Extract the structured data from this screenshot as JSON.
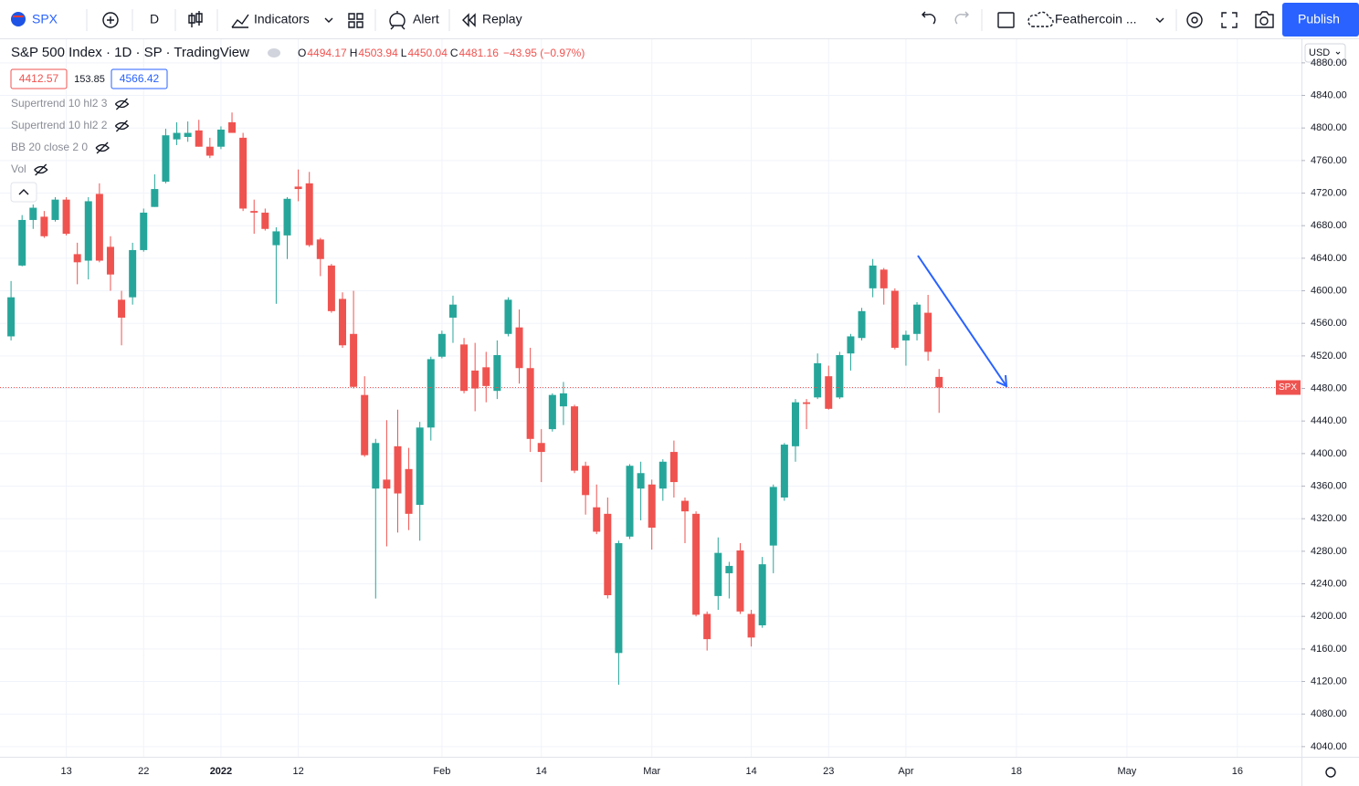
{
  "toolbar": {
    "symbol": "SPX",
    "interval": "D",
    "indicators": "Indicators",
    "alert": "Alert",
    "replay": "Replay",
    "layout": "Feathercoin ...",
    "publish": "Publish"
  },
  "chart_data": {
    "type": "candlestick",
    "title": "S&P 500 Index · 1D · SP · TradingView",
    "legend_keys": [
      "O",
      "H",
      "L",
      "C"
    ],
    "change": "−43.95 (−0.97%)",
    "info_boxes": [
      4412.57,
      153.85,
      4566.42
    ],
    "indicators": [
      "Supertrend 10 hl2 3",
      "Supertrend 10 hl2 2",
      "BB 20 close 2 0",
      "Vol"
    ],
    "currency": "USD",
    "price_label": "SPX",
    "up_color": "#26a69a",
    "down_color": "#ef5350",
    "candles": [
      {
        "open": 4544,
        "high": 4612,
        "low": 4539,
        "close": 4592
      },
      {
        "open": 4631,
        "high": 4693,
        "low": 4630,
        "close": 4687
      },
      {
        "open": 4687,
        "high": 4706,
        "low": 4676,
        "close": 4702
      },
      {
        "open": 4691,
        "high": 4698,
        "low": 4665,
        "close": 4667
      },
      {
        "open": 4687,
        "high": 4715,
        "low": 4685,
        "close": 4712
      },
      {
        "open": 4712,
        "high": 4715,
        "low": 4668,
        "close": 4670
      },
      {
        "open": 4645,
        "high": 4659,
        "low": 4608,
        "close": 4635
      },
      {
        "open": 4637,
        "high": 4715,
        "low": 4614,
        "close": 4710
      },
      {
        "open": 4719,
        "high": 4732,
        "low": 4635,
        "close": 4637
      },
      {
        "open": 4654,
        "high": 4667,
        "low": 4600,
        "close": 4620
      },
      {
        "open": 4589,
        "high": 4600,
        "low": 4533,
        "close": 4567
      },
      {
        "open": 4592,
        "high": 4659,
        "low": 4583,
        "close": 4650
      },
      {
        "open": 4650,
        "high": 4701,
        "low": 4648,
        "close": 4696
      },
      {
        "open": 4703,
        "high": 4743,
        "low": 4703,
        "close": 4725
      },
      {
        "open": 4734,
        "high": 4799,
        "low": 4732,
        "close": 4791
      },
      {
        "open": 4786,
        "high": 4807,
        "low": 4779,
        "close": 4794
      },
      {
        "open": 4789,
        "high": 4808,
        "low": 4783,
        "close": 4794
      },
      {
        "open": 4797,
        "high": 4810,
        "low": 4777,
        "close": 4777
      },
      {
        "open": 4777,
        "high": 4788,
        "low": 4763,
        "close": 4766
      },
      {
        "open": 4777,
        "high": 4802,
        "low": 4774,
        "close": 4798
      },
      {
        "open": 4807,
        "high": 4819,
        "low": 4794,
        "close": 4794
      },
      {
        "open": 4788,
        "high": 4794,
        "low": 4698,
        "close": 4701
      },
      {
        "open": 4698,
        "high": 4712,
        "low": 4670,
        "close": 4696
      },
      {
        "open": 4696,
        "high": 4701,
        "low": 4674,
        "close": 4676
      },
      {
        "open": 4656,
        "high": 4678,
        "low": 4584,
        "close": 4673
      },
      {
        "open": 4668,
        "high": 4715,
        "low": 4639,
        "close": 4713
      },
      {
        "open": 4728,
        "high": 4749,
        "low": 4710,
        "close": 4725
      },
      {
        "open": 4732,
        "high": 4746,
        "low": 4654,
        "close": 4656
      },
      {
        "open": 4663,
        "high": 4665,
        "low": 4618,
        "close": 4639
      },
      {
        "open": 4631,
        "high": 4633,
        "low": 4573,
        "close": 4575
      },
      {
        "open": 4590,
        "high": 4598,
        "low": 4530,
        "close": 4533
      },
      {
        "open": 4547,
        "high": 4600,
        "low": 4480,
        "close": 4482
      },
      {
        "open": 4472,
        "high": 4495,
        "low": 4396,
        "close": 4398
      },
      {
        "open": 4357,
        "high": 4418,
        "low": 4222,
        "close": 4413
      },
      {
        "open": 4368,
        "high": 4441,
        "low": 4286,
        "close": 4357
      },
      {
        "open": 4409,
        "high": 4454,
        "low": 4303,
        "close": 4351
      },
      {
        "open": 4381,
        "high": 4407,
        "low": 4306,
        "close": 4326
      },
      {
        "open": 4337,
        "high": 4439,
        "low": 4293,
        "close": 4432
      },
      {
        "open": 4432,
        "high": 4519,
        "low": 4416,
        "close": 4516
      },
      {
        "open": 4519,
        "high": 4551,
        "low": 4517,
        "close": 4547
      },
      {
        "open": 4567,
        "high": 4594,
        "low": 4536,
        "close": 4583
      },
      {
        "open": 4534,
        "high": 4542,
        "low": 4474,
        "close": 4477
      },
      {
        "open": 4502,
        "high": 4536,
        "low": 4452,
        "close": 4480
      },
      {
        "open": 4506,
        "high": 4525,
        "low": 4463,
        "close": 4483
      },
      {
        "open": 4477,
        "high": 4539,
        "low": 4467,
        "close": 4521
      },
      {
        "open": 4547,
        "high": 4592,
        "low": 4544,
        "close": 4589
      },
      {
        "open": 4555,
        "high": 4577,
        "low": 4486,
        "close": 4505
      },
      {
        "open": 4505,
        "high": 4530,
        "low": 4402,
        "close": 4418
      },
      {
        "open": 4413,
        "high": 4430,
        "low": 4365,
        "close": 4402
      },
      {
        "open": 4430,
        "high": 4474,
        "low": 4427,
        "close": 4472
      },
      {
        "open": 4458,
        "high": 4488,
        "low": 4435,
        "close": 4474
      },
      {
        "open": 4458,
        "high": 4460,
        "low": 4376,
        "close": 4379
      },
      {
        "open": 4385,
        "high": 4390,
        "low": 4325,
        "close": 4349
      },
      {
        "open": 4334,
        "high": 4362,
        "low": 4301,
        "close": 4304
      },
      {
        "open": 4326,
        "high": 4346,
        "low": 4222,
        "close": 4226
      },
      {
        "open": 4155,
        "high": 4293,
        "low": 4116,
        "close": 4290
      },
      {
        "open": 4298,
        "high": 4387,
        "low": 4295,
        "close": 4385
      },
      {
        "open": 4357,
        "high": 4390,
        "low": 4318,
        "close": 4376
      },
      {
        "open": 4362,
        "high": 4368,
        "low": 4282,
        "close": 4309
      },
      {
        "open": 4357,
        "high": 4393,
        "low": 4342,
        "close": 4390
      },
      {
        "open": 4402,
        "high": 4416,
        "low": 4346,
        "close": 4365
      },
      {
        "open": 4342,
        "high": 4346,
        "low": 4290,
        "close": 4329
      },
      {
        "open": 4326,
        "high": 4329,
        "low": 4200,
        "close": 4202
      },
      {
        "open": 4203,
        "high": 4206,
        "low": 4158,
        "close": 4172
      },
      {
        "open": 4225,
        "high": 4297,
        "low": 4208,
        "close": 4278
      },
      {
        "open": 4253,
        "high": 4267,
        "low": 4222,
        "close": 4262
      },
      {
        "open": 4281,
        "high": 4290,
        "low": 4203,
        "close": 4206
      },
      {
        "open": 4203,
        "high": 4208,
        "low": 4163,
        "close": 4174
      },
      {
        "open": 4189,
        "high": 4273,
        "low": 4186,
        "close": 4264
      },
      {
        "open": 4287,
        "high": 4362,
        "low": 4253,
        "close": 4359
      },
      {
        "open": 4346,
        "high": 4413,
        "low": 4342,
        "close": 4411
      },
      {
        "open": 4409,
        "high": 4467,
        "low": 4390,
        "close": 4463
      },
      {
        "open": 4463,
        "high": 4467,
        "low": 4430,
        "close": 4461
      },
      {
        "open": 4469,
        "high": 4523,
        "low": 4467,
        "close": 4511
      },
      {
        "open": 4495,
        "high": 4508,
        "low": 4454,
        "close": 4455
      },
      {
        "open": 4469,
        "high": 4525,
        "low": 4467,
        "close": 4521
      },
      {
        "open": 4523,
        "high": 4547,
        "low": 4502,
        "close": 4544
      },
      {
        "open": 4542,
        "high": 4579,
        "low": 4539,
        "close": 4575
      },
      {
        "open": 4603,
        "high": 4639,
        "low": 4592,
        "close": 4631
      },
      {
        "open": 4626,
        "high": 4628,
        "low": 4583,
        "close": 4603
      },
      {
        "open": 4600,
        "high": 4603,
        "low": 4528,
        "close": 4530
      },
      {
        "open": 4539,
        "high": 4551,
        "low": 4508,
        "close": 4546
      },
      {
        "open": 4547,
        "high": 4586,
        "low": 4539,
        "close": 4583
      },
      {
        "open": 4573,
        "high": 4595,
        "low": 4514,
        "close": 4525
      },
      {
        "open": 4494.17,
        "high": 4503.94,
        "low": 4450.04,
        "close": 4481.16
      }
    ],
    "ylim": [
      4027.5,
      4909
    ],
    "yticks": [
      {
        "value": 4040,
        "label": "4040.00"
      },
      {
        "value": 4080,
        "label": "4080.00"
      },
      {
        "value": 4120,
        "label": "4120.00"
      },
      {
        "value": 4160,
        "label": "4160.00"
      },
      {
        "value": 4200,
        "label": "4200.00"
      },
      {
        "value": 4240,
        "label": "4240.00"
      },
      {
        "value": 4280,
        "label": "4280.00"
      },
      {
        "value": 4320,
        "label": "4320.00"
      },
      {
        "value": 4360,
        "label": "4360.00"
      },
      {
        "value": 4400,
        "label": "4400.00"
      },
      {
        "value": 4440,
        "label": "4440.00"
      },
      {
        "value": 4480,
        "label": "4480.00"
      },
      {
        "value": 4520,
        "label": "4520.00"
      },
      {
        "value": 4560,
        "label": "4560.00"
      },
      {
        "value": 4600,
        "label": "4600.00"
      },
      {
        "value": 4640,
        "label": "4640.00"
      },
      {
        "value": 4680,
        "label": "4680.00"
      },
      {
        "value": 4720,
        "label": "4720.00"
      },
      {
        "value": 4760,
        "label": "4760.00"
      },
      {
        "value": 4800,
        "label": "4800.00"
      },
      {
        "value": 4840,
        "label": "4840.00"
      },
      {
        "value": 4880,
        "label": "4880.00"
      }
    ],
    "xlim": [
      -1,
      116.8
    ],
    "xticks": [
      {
        "value": 5,
        "label": "13"
      },
      {
        "value": 12,
        "label": "22"
      },
      {
        "value": 19,
        "label": "2022"
      },
      {
        "value": 26,
        "label": "12"
      },
      {
        "value": 39,
        "label": "Feb"
      },
      {
        "value": 48,
        "label": "14"
      },
      {
        "value": 58,
        "label": "Mar"
      },
      {
        "value": 67,
        "label": "14"
      },
      {
        "value": 74,
        "label": "23"
      },
      {
        "value": 81,
        "label": "Apr"
      },
      {
        "value": 91,
        "label": "18"
      },
      {
        "value": 101,
        "label": "May"
      },
      {
        "value": 111,
        "label": "16"
      }
    ],
    "grid": true
  }
}
